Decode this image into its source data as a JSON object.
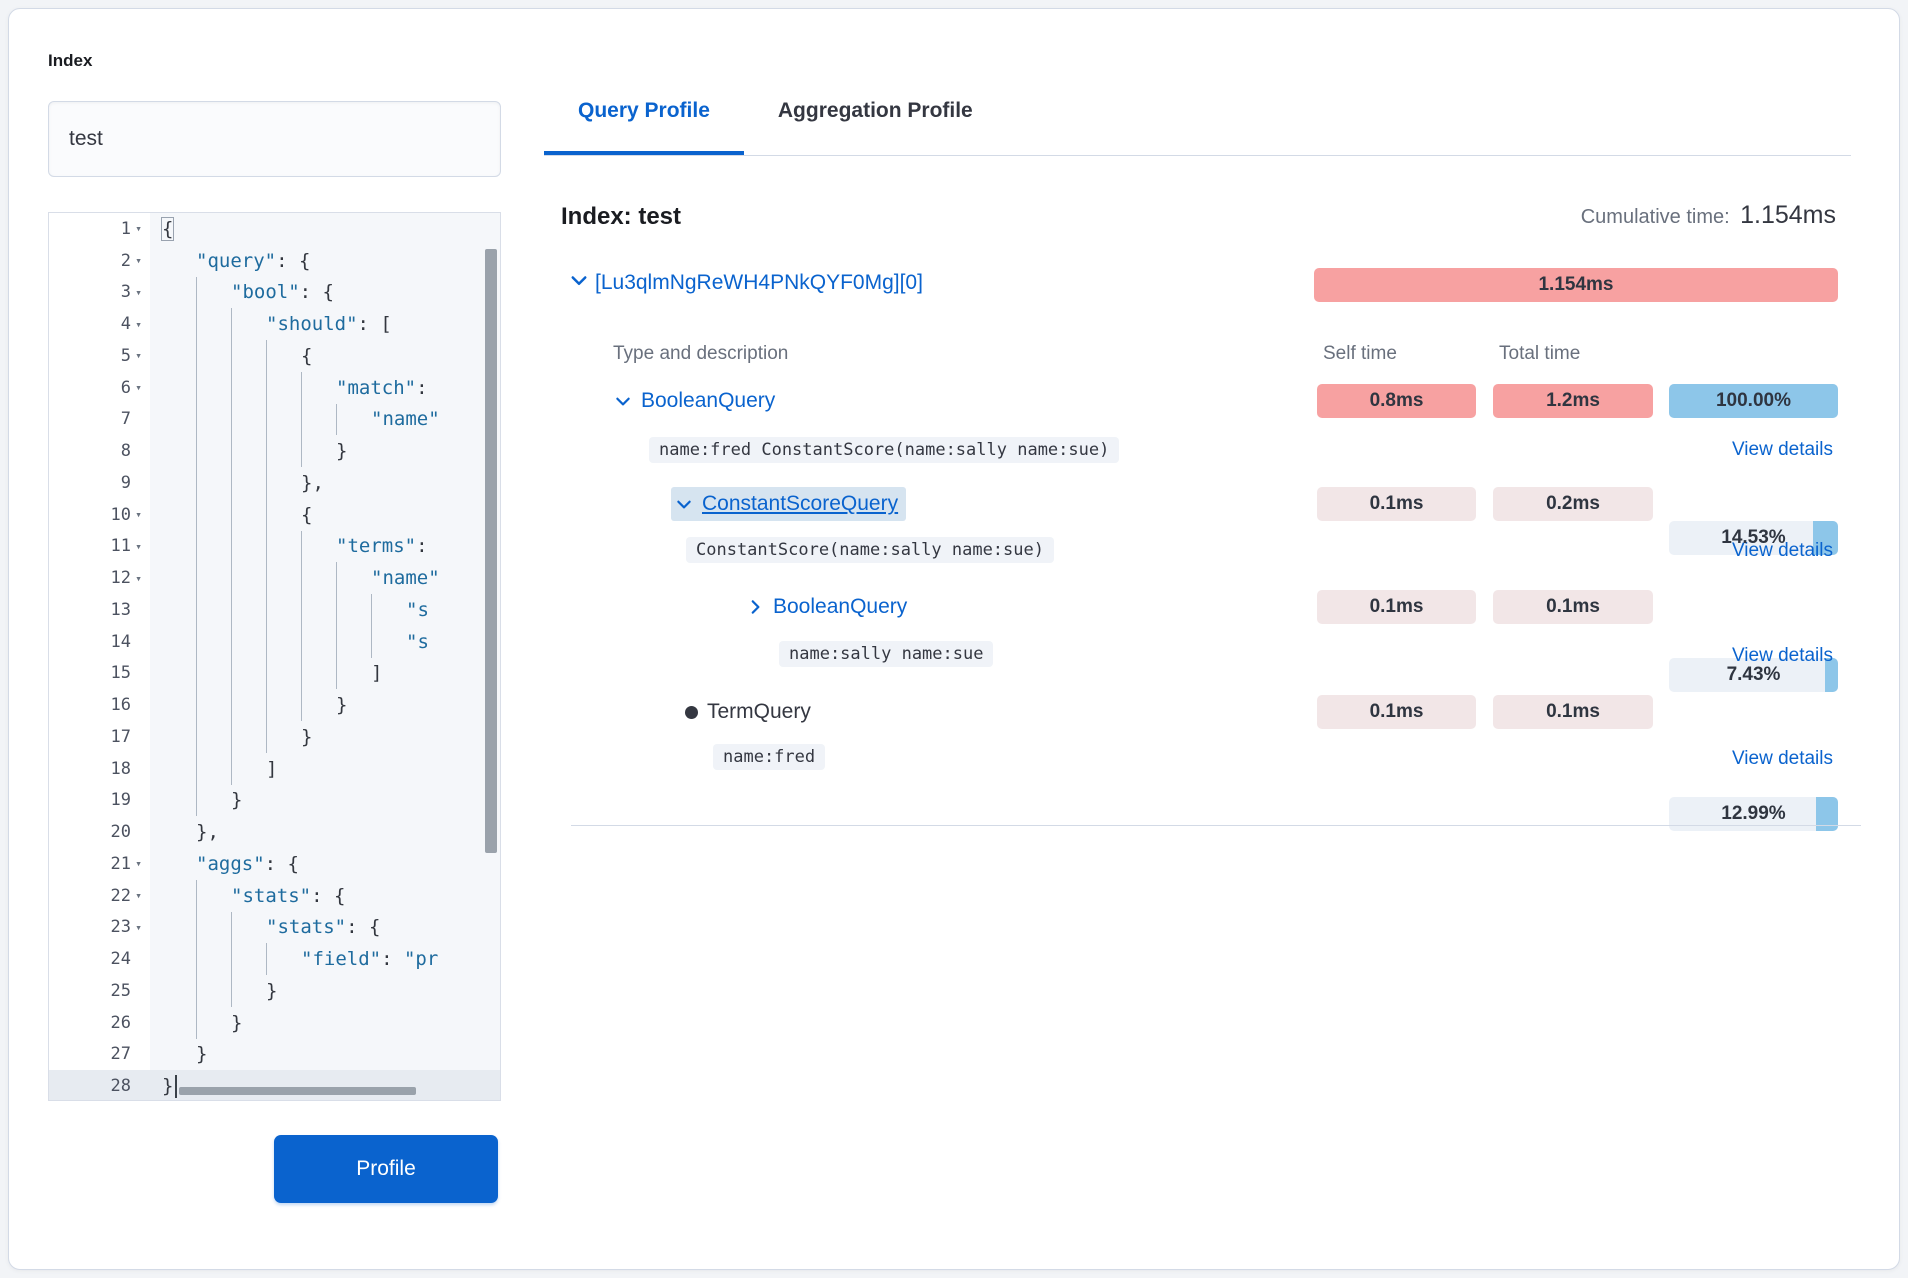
{
  "colors": {
    "primary_blue": "#0A63CE",
    "hot_badge_red": "#F7A1A1",
    "cool_badge_pink": "#F2E6E7",
    "percent_fill_blue": "#8DC6E9",
    "percent_track": "#ECF1F7",
    "chip_bg": "#F0F3F8",
    "highlight_bg": "#D6E4F0",
    "divider": "#D3DAE6",
    "code_key": "#1E6B9E",
    "text_dark": "#343741",
    "text_gray": "#69707D"
  },
  "left_panel": {
    "index_label": "Index",
    "index_value": "test",
    "profile_button_label": "Profile"
  },
  "editor": {
    "lines": [
      {
        "n": 1,
        "fold": 1,
        "ind": 0,
        "seg": [
          [
            "pb",
            "{"
          ]
        ]
      },
      {
        "n": 2,
        "fold": 1,
        "ind": 1,
        "seg": [
          [
            "k",
            "\"query\""
          ],
          [
            "p",
            ": {"
          ]
        ]
      },
      {
        "n": 3,
        "fold": 1,
        "ind": 2,
        "seg": [
          [
            "k",
            "\"bool\""
          ],
          [
            "p",
            ": {"
          ]
        ]
      },
      {
        "n": 4,
        "fold": 1,
        "ind": 3,
        "seg": [
          [
            "k",
            "\"should\""
          ],
          [
            "p",
            ": ["
          ]
        ]
      },
      {
        "n": 5,
        "fold": 1,
        "ind": 4,
        "seg": [
          [
            "p",
            "{"
          ]
        ]
      },
      {
        "n": 6,
        "fold": 1,
        "ind": 5,
        "seg": [
          [
            "k",
            "\"match\""
          ],
          [
            "p",
            ":"
          ]
        ]
      },
      {
        "n": 7,
        "fold": 0,
        "ind": 6,
        "seg": [
          [
            "k",
            "\"name\""
          ]
        ]
      },
      {
        "n": 8,
        "fold": 0,
        "ind": 5,
        "seg": [
          [
            "p",
            "}"
          ]
        ]
      },
      {
        "n": 9,
        "fold": 0,
        "ind": 4,
        "seg": [
          [
            "p",
            "},"
          ]
        ]
      },
      {
        "n": 10,
        "fold": 1,
        "ind": 4,
        "seg": [
          [
            "p",
            "{"
          ]
        ]
      },
      {
        "n": 11,
        "fold": 1,
        "ind": 5,
        "seg": [
          [
            "k",
            "\"terms\""
          ],
          [
            "p",
            ":"
          ]
        ]
      },
      {
        "n": 12,
        "fold": 1,
        "ind": 6,
        "seg": [
          [
            "k",
            "\"name\""
          ]
        ]
      },
      {
        "n": 13,
        "fold": 0,
        "ind": 7,
        "seg": [
          [
            "k",
            "\"s"
          ]
        ]
      },
      {
        "n": 14,
        "fold": 0,
        "ind": 7,
        "seg": [
          [
            "k",
            "\"s"
          ]
        ]
      },
      {
        "n": 15,
        "fold": 0,
        "ind": 6,
        "seg": [
          [
            "p",
            "]"
          ]
        ]
      },
      {
        "n": 16,
        "fold": 0,
        "ind": 5,
        "seg": [
          [
            "p",
            "}"
          ]
        ]
      },
      {
        "n": 17,
        "fold": 0,
        "ind": 4,
        "seg": [
          [
            "p",
            "}"
          ]
        ]
      },
      {
        "n": 18,
        "fold": 0,
        "ind": 3,
        "seg": [
          [
            "p",
            "]"
          ]
        ]
      },
      {
        "n": 19,
        "fold": 0,
        "ind": 2,
        "seg": [
          [
            "p",
            "}"
          ]
        ]
      },
      {
        "n": 20,
        "fold": 0,
        "ind": 1,
        "seg": [
          [
            "p",
            "},"
          ]
        ]
      },
      {
        "n": 21,
        "fold": 1,
        "ind": 1,
        "seg": [
          [
            "k",
            "\"aggs\""
          ],
          [
            "p",
            ": {"
          ]
        ]
      },
      {
        "n": 22,
        "fold": 1,
        "ind": 2,
        "seg": [
          [
            "k",
            "\"stats\""
          ],
          [
            "p",
            ": {"
          ]
        ]
      },
      {
        "n": 23,
        "fold": 1,
        "ind": 3,
        "seg": [
          [
            "k",
            "\"stats\""
          ],
          [
            "p",
            ": {"
          ]
        ]
      },
      {
        "n": 24,
        "fold": 0,
        "ind": 4,
        "seg": [
          [
            "k",
            "\"field\""
          ],
          [
            "p",
            ": "
          ],
          [
            "k",
            "\"pr"
          ]
        ]
      },
      {
        "n": 25,
        "fold": 0,
        "ind": 3,
        "seg": [
          [
            "p",
            "}"
          ]
        ]
      },
      {
        "n": 26,
        "fold": 0,
        "ind": 2,
        "seg": [
          [
            "p",
            "}"
          ]
        ]
      },
      {
        "n": 27,
        "fold": 0,
        "ind": 1,
        "seg": [
          [
            "p",
            "}"
          ]
        ]
      },
      {
        "n": 28,
        "fold": 0,
        "ind": 0,
        "seg": [
          [
            "p",
            "}"
          ]
        ],
        "active": 1,
        "cursor": 1
      }
    ]
  },
  "tabs": [
    {
      "label": "Query Profile",
      "active": true
    },
    {
      "label": "Aggregation Profile",
      "active": false
    }
  ],
  "profile_header": {
    "title": "Index: test",
    "cumulative_label": "Cumulative time:",
    "cumulative_value": "1.154ms"
  },
  "shard": {
    "id": "[Lu3qlmNgReWH4PNkQYF0Mg][0]",
    "time": "1.154ms"
  },
  "table": {
    "type_header": "Type and description",
    "self_header": "Self time",
    "total_header": "Total time",
    "view_details": "View details",
    "rows": [
      {
        "name": "BooleanQuery",
        "desc": "name:fred ConstantScore(name:sally name:sue)",
        "self": "0.8ms",
        "total": "1.2ms",
        "percent": "100.00%",
        "percent_value": 100
      },
      {
        "name": "ConstantScoreQuery",
        "desc": "ConstantScore(name:sally name:sue)",
        "self": "0.1ms",
        "total": "0.2ms",
        "percent": "14.53%",
        "percent_value": 14.53
      },
      {
        "name": "BooleanQuery",
        "desc": "name:sally name:sue",
        "self": "0.1ms",
        "total": "0.1ms",
        "percent": "7.43%",
        "percent_value": 7.43
      },
      {
        "name": "TermQuery",
        "desc": "name:fred",
        "self": "0.1ms",
        "total": "0.1ms",
        "percent": "12.99%",
        "percent_value": 12.99
      }
    ]
  }
}
